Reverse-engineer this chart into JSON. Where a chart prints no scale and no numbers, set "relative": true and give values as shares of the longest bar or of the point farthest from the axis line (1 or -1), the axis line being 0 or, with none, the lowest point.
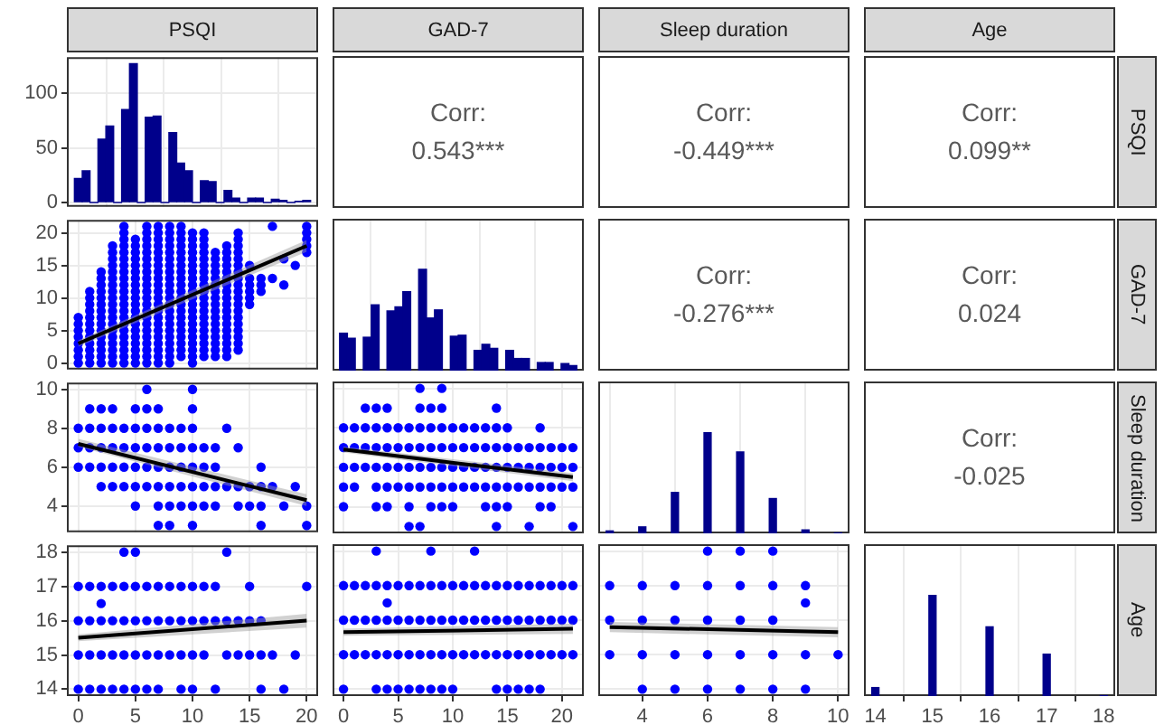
{
  "chart_data": [
    {
      "type": "histogram",
      "title": "PSQI",
      "color": "#00008b",
      "bins": [
        -0.34,
        0.34,
        1.03,
        1.72,
        2.41,
        3.1,
        3.79,
        4.48,
        5.17,
        5.86,
        6.55,
        7.24,
        7.93,
        8.62,
        9.31,
        10,
        10.69,
        11.38,
        12.07,
        12.76,
        13.45,
        14.14,
        14.83,
        15.52,
        16.21,
        16.9,
        17.59,
        18.28,
        18.97,
        19.66,
        20.34
      ],
      "values": [
        22,
        29,
        0,
        58,
        70,
        0,
        85,
        127,
        0,
        78,
        79,
        0,
        64,
        36,
        29,
        0,
        20,
        19,
        0,
        11,
        4,
        0,
        4,
        4,
        0,
        3,
        2,
        0,
        1,
        2
      ],
      "xlim": [
        -1,
        21
      ],
      "xticks": [
        0,
        5,
        10,
        15,
        20
      ],
      "ylim": [
        -4,
        133
      ],
      "yticks": [
        0,
        50,
        100
      ],
      "grid": true,
      "tick_labels": "y"
    },
    {
      "type": "other",
      "title": "GAD-7",
      "annotations": [
        "Corr:",
        "0.543***"
      ]
    },
    {
      "type": "other",
      "title": "Sleep duration",
      "annotations": [
        "Corr:",
        "-0.449***"
      ]
    },
    {
      "type": "other",
      "title": "Age",
      "y2label": "PSQI",
      "annotations": [
        "Corr:",
        "0.099**"
      ]
    },
    {
      "type": "scatter",
      "grid": true,
      "tick_labels": "y",
      "xlim": [
        -1,
        21
      ],
      "xticks": [
        0,
        5,
        10,
        15,
        20
      ],
      "ylim": [
        -1,
        22
      ],
      "yticks": [
        0,
        5,
        10,
        15,
        20
      ],
      "series": [
        {
          "type": "scatter",
          "marker": "circle",
          "color": "#0000ff",
          "x": [
            0,
            0,
            0,
            0,
            0,
            0,
            0,
            0,
            1,
            1,
            1,
            1,
            1,
            1,
            1,
            1,
            1,
            1,
            1,
            1,
            2,
            2,
            2,
            2,
            2,
            2,
            2,
            2,
            2,
            2,
            2,
            2,
            2,
            2,
            2,
            3,
            3,
            3,
            3,
            3,
            3,
            3,
            3,
            3,
            3,
            3,
            3,
            3,
            3,
            3,
            3,
            3,
            3,
            3,
            4,
            4,
            4,
            4,
            4,
            4,
            4,
            4,
            4,
            4,
            4,
            4,
            4,
            4,
            4,
            4,
            4,
            4,
            4,
            4,
            4,
            4,
            5,
            5,
            5,
            5,
            5,
            5,
            5,
            5,
            5,
            5,
            5,
            5,
            5,
            5,
            5,
            5,
            5,
            5,
            5,
            5,
            6,
            6,
            6,
            6,
            6,
            6,
            6,
            6,
            6,
            6,
            6,
            6,
            6,
            6,
            6,
            6,
            6,
            6,
            6,
            6,
            6,
            6,
            7,
            7,
            7,
            7,
            7,
            7,
            7,
            7,
            7,
            7,
            7,
            7,
            7,
            7,
            7,
            7,
            7,
            7,
            7,
            7,
            7,
            7,
            8,
            8,
            8,
            8,
            8,
            8,
            8,
            8,
            8,
            8,
            8,
            8,
            8,
            8,
            8,
            8,
            8,
            8,
            8,
            8,
            8,
            8,
            9,
            9,
            9,
            9,
            9,
            9,
            9,
            9,
            9,
            9,
            9,
            9,
            9,
            9,
            9,
            9,
            9,
            9,
            9,
            9,
            9,
            10,
            10,
            10,
            10,
            10,
            10,
            10,
            10,
            10,
            10,
            10,
            10,
            10,
            10,
            10,
            10,
            10,
            10,
            10,
            10,
            10,
            11,
            11,
            11,
            11,
            11,
            11,
            11,
            11,
            11,
            11,
            11,
            11,
            11,
            11,
            11,
            11,
            11,
            11,
            11,
            11,
            12,
            12,
            12,
            12,
            12,
            12,
            12,
            12,
            12,
            12,
            12,
            12,
            12,
            12,
            12,
            12,
            12,
            13,
            13,
            13,
            13,
            13,
            13,
            13,
            13,
            13,
            13,
            13,
            13,
            13,
            13,
            13,
            13,
            13,
            13,
            14,
            14,
            14,
            14,
            14,
            14,
            14,
            14,
            14,
            14,
            14,
            14,
            14,
            14,
            14,
            14,
            14,
            14,
            14,
            15,
            15,
            15,
            15,
            15,
            15,
            16,
            16,
            16,
            17,
            17,
            18,
            18,
            19,
            20,
            20,
            20,
            20,
            20
          ],
          "values": [
            0,
            1,
            2,
            3,
            4,
            5,
            6,
            7,
            0,
            1,
            2,
            3,
            4,
            5,
            6,
            7,
            8,
            9,
            10,
            11,
            0,
            1,
            2,
            3,
            4,
            5,
            6,
            7,
            8,
            9,
            10,
            11,
            12,
            13,
            14,
            0,
            1,
            2,
            3,
            4,
            5,
            6,
            7,
            8,
            9,
            10,
            11,
            12,
            13,
            14,
            15,
            16,
            17,
            18,
            0,
            1,
            2,
            3,
            4,
            5,
            6,
            7,
            8,
            9,
            10,
            11,
            12,
            13,
            14,
            15,
            16,
            17,
            18,
            19,
            20,
            21,
            0,
            1,
            2,
            3,
            4,
            5,
            6,
            7,
            8,
            9,
            10,
            11,
            12,
            13,
            14,
            15,
            16,
            17,
            18,
            19,
            0,
            1,
            2,
            3,
            4,
            5,
            6,
            7,
            8,
            9,
            10,
            11,
            12,
            13,
            14,
            15,
            16,
            17,
            18,
            19,
            20,
            21,
            0,
            1,
            2,
            3,
            4,
            5,
            6,
            7,
            8,
            9,
            10,
            11,
            12,
            13,
            14,
            15,
            16,
            17,
            18,
            19,
            20,
            21,
            0,
            1,
            2,
            3,
            4,
            5,
            6,
            7,
            8,
            9,
            10,
            11,
            12,
            13,
            14,
            15,
            16,
            17,
            18,
            19,
            20,
            21,
            1,
            2,
            3,
            4,
            5,
            6,
            7,
            8,
            9,
            10,
            11,
            12,
            13,
            14,
            15,
            16,
            17,
            18,
            19,
            20,
            21,
            0,
            1,
            2,
            3,
            4,
            5,
            6,
            7,
            8,
            9,
            10,
            11,
            12,
            13,
            14,
            15,
            16,
            17,
            18,
            19,
            20,
            1,
            2,
            3,
            4,
            5,
            6,
            7,
            8,
            9,
            10,
            11,
            12,
            13,
            14,
            15,
            16,
            17,
            18,
            19,
            20,
            1,
            2,
            3,
            4,
            5,
            6,
            7,
            8,
            9,
            10,
            11,
            12,
            13,
            14,
            15,
            16,
            17,
            1,
            2,
            3,
            4,
            5,
            6,
            7,
            8,
            9,
            10,
            11,
            12,
            13,
            14,
            15,
            16,
            17,
            18,
            2,
            3,
            4,
            5,
            6,
            7,
            8,
            9,
            10,
            11,
            12,
            13,
            14,
            15,
            16,
            17,
            18,
            19,
            20,
            9,
            10,
            11,
            12,
            13,
            15,
            11,
            12,
            13,
            13,
            21,
            12,
            16,
            15,
            17,
            18,
            19,
            20,
            21
          ]
        },
        {
          "type": "line",
          "marker": "none",
          "color": "#000000",
          "x": [
            0,
            20
          ],
          "values": [
            3,
            18
          ],
          "lower": [
            2.5,
            17.1
          ],
          "upper": [
            3.5,
            18.9
          ]
        }
      ]
    },
    {
      "type": "bar",
      "relative": true,
      "color": "#00008b",
      "x": [
        0,
        0.72,
        2.17,
        2.9,
        4.34,
        5.07,
        5.79,
        7.24,
        7.97,
        8.69,
        10.14,
        10.86,
        12.31,
        13.03,
        13.76,
        15.21,
        15.93,
        16.66,
        18.1,
        18.83,
        20.28,
        21
      ],
      "values": [
        0.37,
        0.32,
        0.33,
        0.65,
        0.59,
        0.63,
        0.78,
        1,
        0.52,
        0.6,
        0.34,
        0.35,
        0.2,
        0.26,
        0.22,
        0.2,
        0.12,
        0.12,
        0.08,
        0.08,
        0.07,
        0.05
      ],
      "xlim": [
        -1,
        22
      ],
      "xticks": [
        0,
        5,
        10,
        15,
        20
      ],
      "grid": "x",
      "tick_labels": false
    },
    {
      "type": "other",
      "annotations": [
        "Corr:",
        "-0.276***"
      ]
    },
    {
      "type": "other",
      "y2label": "GAD-7",
      "annotations": [
        "Corr:",
        "0.024"
      ]
    },
    {
      "type": "scatter",
      "grid": true,
      "tick_labels": "y",
      "xlim": [
        -1,
        21
      ],
      "xticks": [
        0,
        5,
        10,
        15,
        20
      ],
      "ylim": [
        2.65,
        10.35
      ],
      "yticks": [
        4,
        6,
        8,
        10
      ],
      "series": [
        {
          "type": "scatter",
          "marker": "circle",
          "color": "#0000ff",
          "x": [
            6,
            10,
            1,
            2,
            3,
            5,
            6,
            7,
            10,
            0,
            1,
            2,
            3,
            4,
            5,
            6,
            7,
            8,
            9,
            10,
            13,
            0,
            1,
            2,
            3,
            4,
            5,
            6,
            7,
            8,
            9,
            10,
            11,
            12,
            14,
            0,
            1,
            2,
            3,
            4,
            5,
            6,
            7,
            8,
            9,
            10,
            11,
            12,
            16,
            2,
            3,
            4,
            5,
            6,
            7,
            8,
            9,
            10,
            11,
            12,
            13,
            14,
            15,
            16,
            17,
            19,
            5,
            7,
            8,
            9,
            10,
            11,
            12,
            14,
            15,
            16,
            18,
            20,
            7,
            8,
            10,
            16,
            20
          ],
          "values": [
            10,
            10,
            9,
            9,
            9,
            9,
            9,
            9,
            9,
            8,
            8,
            8,
            8,
            8,
            8,
            8,
            8,
            8,
            8,
            8,
            8,
            7,
            7,
            7,
            7,
            7,
            7,
            7,
            7,
            7,
            7,
            7,
            7,
            7,
            7,
            6,
            6,
            6,
            6,
            6,
            6,
            6,
            6,
            6,
            6,
            6,
            6,
            6,
            6,
            5,
            5,
            5,
            5,
            5,
            5,
            5,
            5,
            5,
            5,
            5,
            5,
            5,
            5,
            5,
            5,
            5,
            4,
            4,
            4,
            4,
            4,
            4,
            4,
            4,
            4,
            4,
            4,
            4,
            3,
            3,
            3,
            3,
            3
          ]
        },
        {
          "type": "line",
          "marker": "none",
          "color": "#000000",
          "x": [
            0,
            20
          ],
          "values": [
            7.2,
            4.3
          ],
          "lower": [
            7.05,
            4
          ],
          "upper": [
            7.45,
            4.6
          ]
        }
      ]
    },
    {
      "type": "scatter",
      "grid": true,
      "tick_labels": false,
      "xlim": [
        -1,
        22
      ],
      "xticks": [
        0,
        5,
        10,
        15,
        20
      ],
      "ylim": [
        2.65,
        10.35
      ],
      "yticks": [
        4,
        6,
        8,
        10
      ],
      "series": [
        {
          "type": "scatter",
          "marker": "circle",
          "color": "#0000ff",
          "x": [
            7,
            9,
            2,
            3,
            4,
            7,
            8,
            9,
            14,
            0,
            1,
            2,
            3,
            4,
            5,
            6,
            7,
            8,
            9,
            10,
            11,
            12,
            13,
            14,
            15,
            18,
            0,
            1,
            2,
            3,
            4,
            5,
            6,
            7,
            8,
            9,
            10,
            11,
            12,
            13,
            14,
            15,
            16,
            17,
            18,
            19,
            20,
            21,
            0,
            1,
            2,
            3,
            4,
            5,
            6,
            7,
            8,
            9,
            10,
            11,
            12,
            13,
            14,
            15,
            16,
            17,
            18,
            19,
            20,
            21,
            0,
            1,
            3,
            4,
            5,
            6,
            7,
            8,
            9,
            10,
            11,
            12,
            13,
            14,
            15,
            16,
            17,
            18,
            19,
            20,
            21,
            0,
            3,
            4,
            6,
            8,
            9,
            10,
            13,
            14,
            15,
            18,
            19,
            6,
            7,
            14,
            17,
            21
          ],
          "values": [
            10,
            10,
            9,
            9,
            9,
            9,
            9,
            9,
            9,
            8,
            8,
            8,
            8,
            8,
            8,
            8,
            8,
            8,
            8,
            8,
            8,
            8,
            8,
            8,
            8,
            8,
            7,
            7,
            7,
            7,
            7,
            7,
            7,
            7,
            7,
            7,
            7,
            7,
            7,
            7,
            7,
            7,
            7,
            7,
            7,
            7,
            7,
            7,
            6,
            6,
            6,
            6,
            6,
            6,
            6,
            6,
            6,
            6,
            6,
            6,
            6,
            6,
            6,
            6,
            6,
            6,
            6,
            6,
            6,
            6,
            5,
            5,
            5,
            5,
            5,
            5,
            5,
            5,
            5,
            5,
            5,
            5,
            5,
            5,
            5,
            5,
            5,
            5,
            5,
            5,
            5,
            4,
            4,
            4,
            4,
            4,
            4,
            4,
            4,
            4,
            4,
            4,
            4,
            3,
            3,
            3,
            3,
            3
          ]
        },
        {
          "type": "line",
          "marker": "none",
          "color": "#000000",
          "x": [
            0,
            21
          ],
          "values": [
            6.9,
            5.5
          ],
          "lower": [
            6.75,
            5.3
          ],
          "upper": [
            7.05,
            5.7
          ]
        }
      ]
    },
    {
      "type": "bar",
      "relative": true,
      "color": "#00008b",
      "x": [
        3,
        4,
        5,
        6,
        7,
        8,
        9,
        10
      ],
      "values": [
        0.03,
        0.07,
        0.41,
        1,
        0.81,
        0.35,
        0.04,
        0.01
      ],
      "xlim": [
        2.65,
        10.35
      ],
      "xticks": [
        4,
        6,
        8,
        10
      ],
      "grid": "x",
      "tick_labels": false
    },
    {
      "type": "other",
      "y2label": "Sleep duration",
      "annotations": [
        "Corr:",
        "-0.025"
      ]
    },
    {
      "type": "scatter",
      "grid": true,
      "xlim": [
        -1,
        21
      ],
      "xticks": [
        0,
        5,
        10,
        15,
        20
      ],
      "ylim": [
        13.8,
        18.2
      ],
      "yticks": [
        14,
        15,
        16,
        17,
        18
      ],
      "series": [
        {
          "type": "scatter",
          "marker": "circle",
          "color": "#0000ff",
          "x": [
            4,
            5,
            13,
            0,
            1,
            2,
            3,
            4,
            5,
            6,
            7,
            8,
            9,
            10,
            11,
            12,
            15,
            20,
            2,
            0,
            1,
            2,
            3,
            4,
            5,
            6,
            7,
            8,
            9,
            10,
            11,
            12,
            13,
            14,
            15,
            16,
            0,
            1,
            2,
            3,
            4,
            5,
            6,
            7,
            8,
            9,
            10,
            11,
            13,
            14,
            15,
            16,
            17,
            19,
            0,
            1,
            2,
            3,
            4,
            5,
            6,
            7,
            9,
            10,
            12,
            16,
            18
          ],
          "values": [
            18,
            18,
            18,
            17,
            17,
            17,
            17,
            17,
            17,
            17,
            17,
            17,
            17,
            17,
            17,
            17,
            17,
            17,
            16.5,
            16,
            16,
            16,
            16,
            16,
            16,
            16,
            16,
            16,
            16,
            16,
            16,
            16,
            16,
            16,
            16,
            16,
            15,
            15,
            15,
            15,
            15,
            15,
            15,
            15,
            15,
            15,
            15,
            15,
            15,
            15,
            15,
            15,
            15,
            15,
            14,
            14,
            14,
            14,
            14,
            14,
            14,
            14,
            14,
            14,
            14,
            14,
            14
          ]
        },
        {
          "type": "line",
          "marker": "none",
          "color": "#000000",
          "x": [
            0,
            20
          ],
          "values": [
            15.5,
            16
          ],
          "lower": [
            15.4,
            15.8
          ],
          "upper": [
            15.6,
            16.2
          ]
        }
      ]
    },
    {
      "type": "scatter",
      "grid": true,
      "tick_labels": "x",
      "xlim": [
        -1,
        22
      ],
      "xticks": [
        0,
        5,
        10,
        15,
        20
      ],
      "ylim": [
        13.8,
        18.2
      ],
      "yticks": [
        14,
        15,
        16,
        17,
        18
      ],
      "series": [
        {
          "type": "scatter",
          "marker": "circle",
          "color": "#0000ff",
          "x": [
            3,
            8,
            12,
            0,
            1,
            2,
            3,
            4,
            5,
            6,
            7,
            8,
            9,
            10,
            11,
            12,
            13,
            14,
            15,
            16,
            17,
            18,
            19,
            20,
            21,
            4,
            0,
            1,
            2,
            3,
            4,
            5,
            6,
            7,
            8,
            9,
            10,
            11,
            12,
            13,
            14,
            15,
            16,
            17,
            18,
            19,
            20,
            21,
            0,
            1,
            2,
            3,
            4,
            5,
            6,
            7,
            8,
            9,
            10,
            11,
            12,
            13,
            14,
            15,
            16,
            17,
            18,
            19,
            20,
            21,
            0,
            3,
            4,
            5,
            6,
            7,
            8,
            9,
            10,
            14,
            15,
            16,
            17,
            18
          ],
          "values": [
            18,
            18,
            18,
            17,
            17,
            17,
            17,
            17,
            17,
            17,
            17,
            17,
            17,
            17,
            17,
            17,
            17,
            17,
            17,
            17,
            17,
            17,
            17,
            17,
            17,
            16.5,
            16,
            16,
            16,
            16,
            16,
            16,
            16,
            16,
            16,
            16,
            16,
            16,
            16,
            16,
            16,
            16,
            16,
            16,
            16,
            16,
            16,
            16,
            15,
            15,
            15,
            15,
            15,
            15,
            15,
            15,
            15,
            15,
            15,
            15,
            15,
            15,
            15,
            15,
            15,
            15,
            15,
            15,
            15,
            15,
            14,
            14,
            14,
            14,
            14,
            14,
            14,
            14,
            14,
            14,
            14,
            14,
            14,
            14
          ]
        },
        {
          "type": "line",
          "marker": "none",
          "color": "#000000",
          "x": [
            0,
            21
          ],
          "values": [
            15.65,
            15.75
          ],
          "lower": [
            15.55,
            15.6
          ],
          "upper": [
            15.75,
            15.9
          ]
        }
      ]
    },
    {
      "type": "scatter",
      "grid": true,
      "tick_labels": "x",
      "xlim": [
        2.65,
        10.35
      ],
      "xticks": [
        4,
        6,
        8,
        10
      ],
      "ylim": [
        13.8,
        18.2
      ],
      "yticks": [
        14,
        15,
        16,
        17,
        18
      ],
      "series": [
        {
          "type": "scatter",
          "marker": "circle",
          "color": "#0000ff",
          "x": [
            6,
            7,
            8,
            3,
            4,
            5,
            6,
            7,
            8,
            9,
            9,
            3,
            4,
            5,
            6,
            7,
            8,
            3,
            4,
            5,
            6,
            7,
            8,
            9,
            10,
            4,
            5,
            6,
            7,
            8,
            9
          ],
          "values": [
            18,
            18,
            18,
            17,
            17,
            17,
            17,
            17,
            17,
            17,
            16.5,
            16,
            16,
            16,
            16,
            16,
            16,
            15,
            15,
            15,
            15,
            15,
            15,
            15,
            15,
            14,
            14,
            14,
            14,
            14,
            14
          ]
        },
        {
          "type": "line",
          "marker": "none",
          "color": "#000000",
          "x": [
            3,
            10
          ],
          "values": [
            15.8,
            15.65
          ],
          "lower": [
            15.65,
            15.5
          ],
          "upper": [
            15.95,
            15.8
          ]
        }
      ]
    },
    {
      "type": "bar",
      "relative": true,
      "color": "#00008b",
      "y2label": "Age",
      "x": [
        14,
        15,
        16,
        17,
        18
      ],
      "values": [
        0.09,
        1,
        0.69,
        0.42,
        0.01
      ],
      "xlim": [
        13.8,
        18.2
      ],
      "xticks": [
        14,
        15,
        16,
        17,
        18
      ],
      "grid": "x",
      "tick_labels": "x"
    }
  ]
}
